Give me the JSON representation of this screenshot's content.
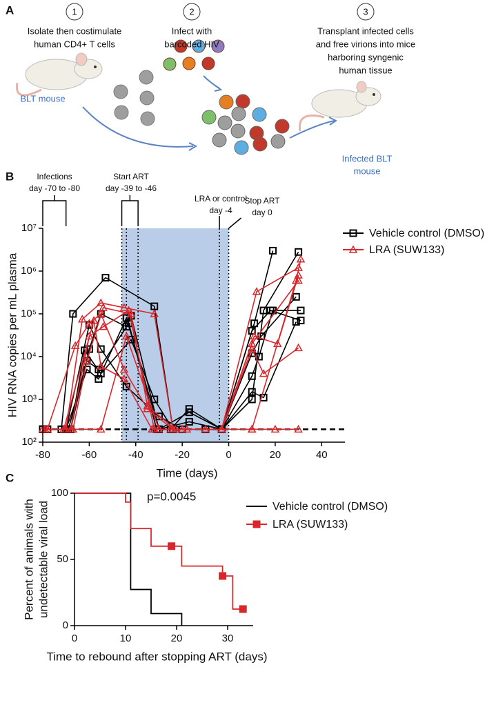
{
  "panel_a": {
    "label": "A",
    "steps": [
      {
        "number": "1",
        "text": [
          "Isolate then costimulate",
          "human CD4+ T cells"
        ]
      },
      {
        "number": "2",
        "text": [
          "Infect with",
          "barcoded HIV"
        ]
      },
      {
        "number": "3",
        "text": [
          "Transplant infected cells",
          "and free virions into mice",
          "harboring syngenic",
          "human tissue"
        ]
      }
    ],
    "source_label": "BLT mouse",
    "target_label": [
      "Infected BLT",
      "mouse"
    ]
  },
  "chart_data": [
    {
      "type": "line",
      "panel": "B",
      "x_label": "Time (days)",
      "y_label": "HIV RNA copies per mL plasma",
      "xlim": [
        -80,
        50
      ],
      "xticks": [
        -80,
        -60,
        -40,
        -20,
        0,
        20,
        40
      ],
      "ylim": [
        100,
        10000000
      ],
      "log_y": true,
      "yticks": [
        {
          "value": 100,
          "label": "10²"
        },
        {
          "value": 1000,
          "label": "10³"
        },
        {
          "value": 10000,
          "label": "10⁴"
        },
        {
          "value": 100000,
          "label": "10⁵"
        },
        {
          "value": 1000000,
          "label": "10⁶"
        },
        {
          "value": 10000000,
          "label": "10⁷"
        }
      ],
      "detection_limit": 200,
      "art_shading": [
        -46,
        0
      ],
      "dotted_lines": [
        -46,
        -44,
        -39,
        -4,
        0
      ],
      "annotations": [
        {
          "text": [
            "Infections",
            "day -70 to -80"
          ],
          "range": [
            -80,
            -70
          ]
        },
        {
          "text": [
            "Start ART",
            "day -39 to -46"
          ],
          "range": [
            -46,
            -39
          ]
        },
        {
          "text": [
            "LRA or control",
            "day -4"
          ],
          "x": -4
        },
        {
          "text": [
            "Stop ART",
            "day 0"
          ],
          "x": 0
        }
      ],
      "legend": "right",
      "series": [
        {
          "name": "Vehicle control (DMSO)",
          "color": "#000000",
          "marker": "square",
          "lines": [
            {
              "x": [
                -80,
                -72,
                -67,
                -53,
                -32,
                -24,
                -10,
                -3,
                11,
                19
              ],
              "values": [
                200,
                200,
                100000,
                700000,
                150000,
                200,
                200,
                200,
                60000,
                3000000
              ]
            },
            {
              "x": [
                -80,
                -68,
                -60,
                -55,
                -44,
                -42,
                -30,
                -17,
                -3,
                10,
                15,
                30
              ],
              "values": [
                200,
                200,
                15000,
                100000,
                50000,
                90000,
                200,
                500,
                200,
                1000,
                120000,
                2800000
              ]
            },
            {
              "x": [
                -78,
                -69,
                -61,
                -56,
                -43,
                -31,
                -25,
                -17,
                -3,
                10,
                14,
                29
              ],
              "values": [
                200,
                200,
                8000,
                5000,
                60000,
                200,
                200,
                600,
                200,
                12000,
                30000,
                250000
              ]
            },
            {
              "x": [
                -80,
                -70,
                -60,
                -55,
                -44,
                -30,
                -20,
                -10,
                -3,
                10,
                18,
                31
              ],
              "values": [
                200,
                200,
                55000,
                15000,
                2000,
                400,
                200,
                200,
                200,
                40000,
                120000,
                70000
              ]
            },
            {
              "x": [
                -78,
                -68,
                -62,
                -55,
                -42,
                -32,
                -24,
                -10,
                -3,
                10,
                13,
                19,
                31
              ],
              "values": [
                200,
                200,
                14000,
                4000,
                25000,
                1000,
                200,
                200,
                200,
                3500,
                10000,
                120000,
                120000
              ]
            },
            {
              "x": [
                -80,
                -70,
                -61,
                -56,
                -44,
                -30,
                -17,
                -3,
                10,
                15,
                29
              ],
              "values": [
                200,
                200,
                5000,
                3000,
                80000,
                200,
                300,
                200,
                1500,
                1100,
                65000
              ]
            }
          ]
        },
        {
          "name": "LRA (SUW133)",
          "color": "#d9262b",
          "marker": "triangle",
          "lines": [
            {
              "x": [
                -80,
                -70,
                -63,
                -55,
                -45,
                -32,
                -24,
                -3,
                10,
                29,
                31
              ],
              "values": [
                200,
                200,
                75000,
                180000,
                140000,
                100000,
                200,
                200,
                200,
                600000,
                1900000
              ]
            },
            {
              "x": [
                -78,
                -66,
                -60,
                -55,
                -45,
                -35,
                -24,
                -10,
                -3,
                12,
                30
              ],
              "values": [
                200,
                18000,
                60000,
                100000,
                5000,
                600,
                200,
                200,
                200,
                330000,
                1200000
              ]
            },
            {
              "x": [
                -80,
                -68,
                -60,
                -54,
                -43,
                -32,
                -20,
                -10,
                -3,
                10,
                20,
                30
              ],
              "values": [
                200,
                200,
                30000,
                50000,
                120000,
                200,
                200,
                200,
                200,
                200,
                200,
                200
              ]
            },
            {
              "x": [
                -79,
                -71,
                -58,
                -55,
                -45,
                -33,
                -25,
                -3,
                11,
                21,
                30
              ],
              "values": [
                200,
                200,
                70000,
                6000,
                3000,
                200,
                200,
                200,
                30000,
                20000,
                800000
              ]
            },
            {
              "x": [
                -78,
                -67,
                -61,
                -54,
                -42,
                -35,
                -23,
                -3,
                10,
                15,
                30
              ],
              "values": [
                200,
                200,
                8000,
                140000,
                100000,
                700,
                200,
                200,
                15000,
                4000,
                16000
              ]
            },
            {
              "x": [
                -79,
                -70,
                -55,
                -44,
                -30,
                -18,
                -3,
                10,
                30
              ],
              "values": [
                200,
                200,
                200,
                30000,
                200,
                200,
                200,
                20000,
                600000
              ]
            }
          ]
        }
      ]
    },
    {
      "type": "step",
      "panel": "C",
      "x_label": "Time to rebound after stopping ART (days)",
      "y_label": [
        "Percent of animals with",
        "undetectable viral load"
      ],
      "xlim": [
        0,
        35
      ],
      "xticks": [
        0,
        10,
        20,
        30
      ],
      "ylim": [
        0,
        100
      ],
      "yticks": [
        0,
        50,
        100
      ],
      "annotation": "p=0.0045",
      "legend": "right",
      "series": [
        {
          "name": "Vehicle control (DMSO)",
          "color": "#000000",
          "x": [
            0,
            11,
            15,
            21
          ],
          "values": [
            100,
            27.3,
            9.1,
            0
          ]
        },
        {
          "name": "LRA (SUW133)",
          "color": "#d9262b",
          "marker": "square",
          "x": [
            0,
            10,
            11,
            15,
            21,
            29,
            31
          ],
          "values": [
            100,
            93.3,
            73.3,
            60,
            45,
            37.5,
            12.5
          ],
          "censored": {
            "x": [
              19,
              29,
              33
            ],
            "values": [
              60,
              37.5,
              12.5
            ]
          }
        }
      ]
    }
  ]
}
